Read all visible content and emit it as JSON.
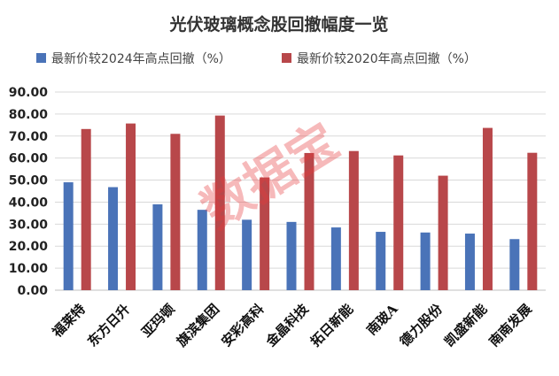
{
  "chart_data": {
    "type": "bar",
    "title": "光伏玻璃概念股回撤幅度一览",
    "categories": [
      "福莱特",
      "东方日升",
      "亚玛顿",
      "旗滨集团",
      "安彩高科",
      "金晶科技",
      "拓日新能",
      "南玻A",
      "德力股份",
      "凯盛新能",
      "南南发展"
    ],
    "series": [
      {
        "name": "最新价较2024年高点回撤（%）",
        "color": "#4a73b8",
        "values": [
          49.0,
          46.8,
          39.0,
          36.5,
          32.0,
          31.0,
          28.5,
          26.5,
          26.2,
          25.7,
          23.2
        ]
      },
      {
        "name": "最新价较2020年高点回撤（%）",
        "color": "#b8474a",
        "values": [
          73.2,
          75.7,
          71.0,
          79.3,
          51.2,
          62.3,
          63.2,
          61.2,
          52.0,
          73.7,
          62.4
        ]
      }
    ],
    "ylim": [
      0,
      90
    ],
    "yticks": [
      "0.00",
      "10.00",
      "20.00",
      "30.00",
      "40.00",
      "50.00",
      "60.00",
      "70.00",
      "80.00",
      "90.00"
    ],
    "grid": true,
    "legend_position": "top"
  },
  "watermark": "数据宝"
}
